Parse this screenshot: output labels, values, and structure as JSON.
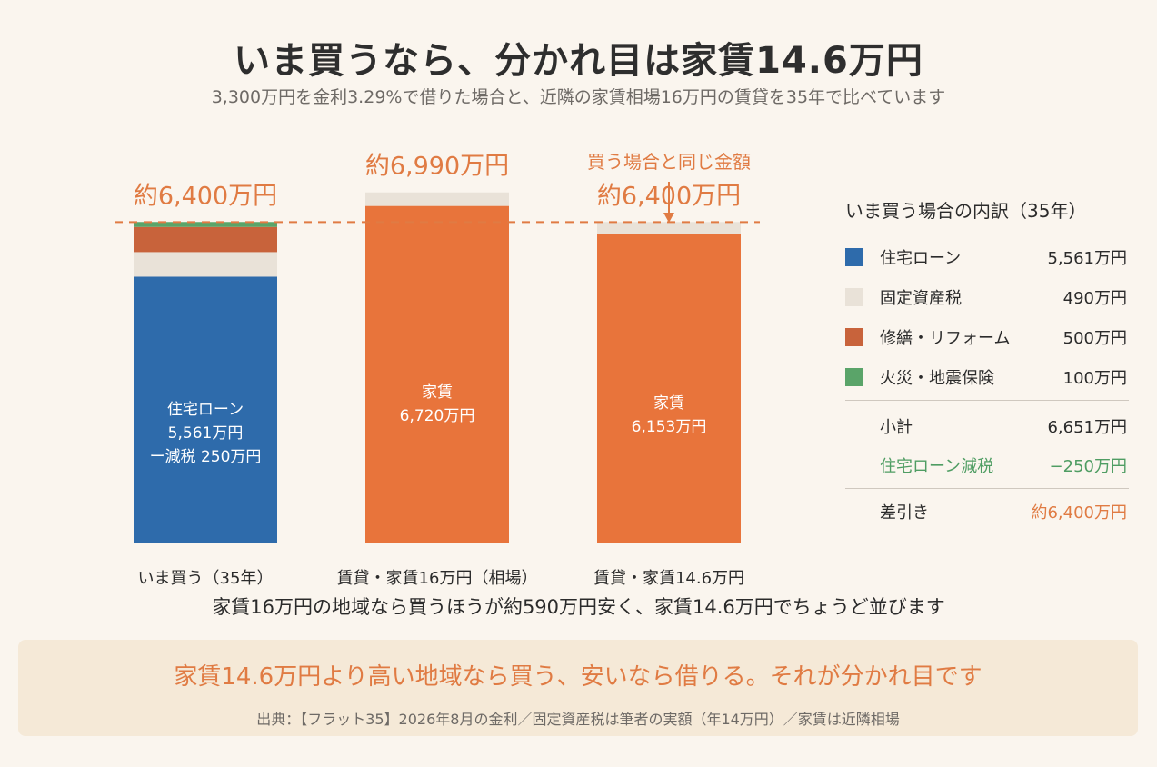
{
  "header": {
    "title": "いま買うなら、分かれ目は家賃14.6万円",
    "subtitle": "3,300万円を金利3.29%で借りた場合と、近隣の家賃相場16万円の賃貸を35年で比べています"
  },
  "annotation": "買う場合と同じ金額",
  "chart_data": {
    "type": "bar",
    "stacked": true,
    "unit": "万円",
    "ylim": [
      0,
      7600
    ],
    "reference_line": {
      "value": 6400,
      "style": "dashed"
    },
    "categories": [
      "いま買う（35年）",
      "賃貸・家賃16万円（相場）",
      "賃貸・家賃14.6万円"
    ],
    "totals_labels": [
      "約6,400万円",
      "約6,990万円",
      "約6,400万円"
    ],
    "series": [
      {
        "key": "loan_net",
        "values": [
          5311,
          0,
          0
        ],
        "color": "#2e6bab"
      },
      {
        "key": "tax",
        "values": [
          490,
          0,
          0
        ],
        "color": "#e9e2d8"
      },
      {
        "key": "reform",
        "values": [
          500,
          0,
          0
        ],
        "color": "#c8633b"
      },
      {
        "key": "insurance",
        "values": [
          100,
          0,
          0
        ],
        "color": "#5aa469"
      },
      {
        "key": "rent",
        "values": [
          0,
          6720,
          6153
        ],
        "color": "#e8743b"
      },
      {
        "key": "other",
        "values": [
          0,
          270,
          247
        ],
        "color": "#e9e2d8"
      }
    ],
    "bar_labels": [
      [
        "住宅ローン",
        "5,561万円",
        "ー減税 250万円"
      ],
      [
        "家賃",
        "6,720万円"
      ],
      [
        "家賃",
        "6,153万円"
      ]
    ]
  },
  "breakdown": {
    "title": "いま買う場合の内訳（35年）",
    "items": [
      {
        "label": "住宅ローン",
        "value": "5,561万円",
        "color": "#2e6bab"
      },
      {
        "label": "固定資産税",
        "value": "490万円",
        "color": "#e9e2d8"
      },
      {
        "label": "修繕・リフォーム",
        "value": "500万円",
        "color": "#c8633b"
      },
      {
        "label": "火災・地震保険",
        "value": "100万円",
        "color": "#5aa469"
      }
    ],
    "subtotal_label": "小計",
    "subtotal_value": "6,651万円",
    "deduction_label": "住宅ローン減税",
    "deduction_value": "−250万円",
    "net_label": "差引き",
    "net_value": "約6,400万円"
  },
  "caption": "家賃16万円の地域なら買うほうが約590万円安く、家賃14.6万円でちょうど並びます",
  "footer": {
    "main": "家賃14.6万円より高い地域なら買う、安いなら借りる。それが分かれ目です",
    "source": "出典：【フラット35】2026年8月の金利／固定資産税は筆者の実額（年14万円）／家賃は近隣相場"
  },
  "colors": {
    "accent": "#e07b43",
    "blue": "#2e6bab",
    "green": "#4f9d63"
  }
}
